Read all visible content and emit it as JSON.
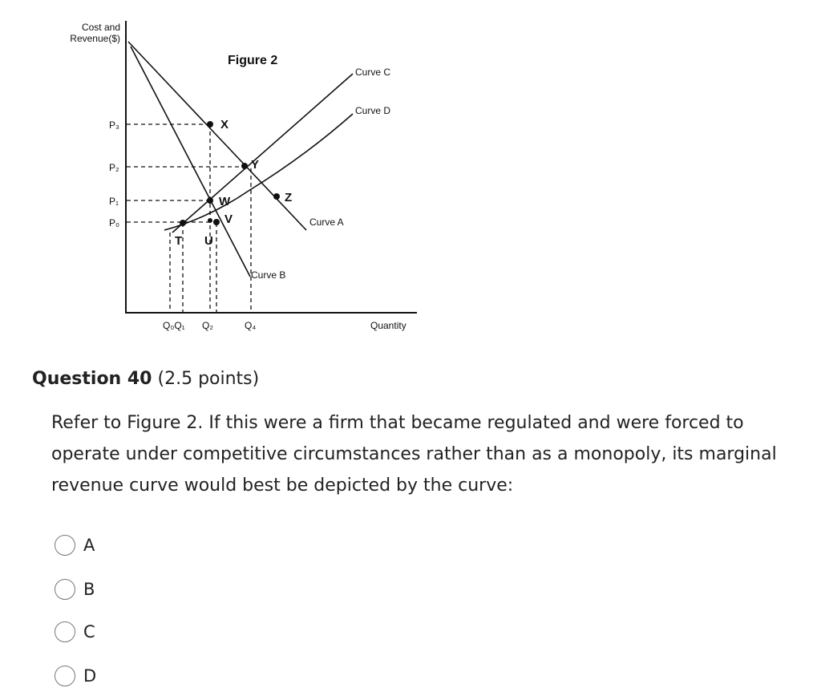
{
  "figure": {
    "y_axis_label": [
      "Cost and",
      "Revenue($)"
    ],
    "title": "Figure 2",
    "x_axis_label": "Quantity",
    "curves": [
      "Curve C",
      "Curve D",
      "Curve A",
      "Curve B"
    ],
    "points": [
      "X",
      "Y",
      "W",
      "Z",
      "V",
      "T",
      "U"
    ],
    "prices": [
      "P₃",
      "P₂",
      "P₁",
      "P₀"
    ],
    "quantities": [
      "Q₀Q₁",
      "Q₂",
      "Q₄"
    ]
  },
  "question": {
    "number": "Question 40",
    "points": "(2.5 points)",
    "text": "Refer to Figure 2. If this were a firm that became regulated and were forced to operate under competitive circumstances rather than as a monopoly, its marginal revenue curve would best be depicted by the curve:",
    "options": [
      "A",
      "B",
      "C",
      "D"
    ]
  }
}
